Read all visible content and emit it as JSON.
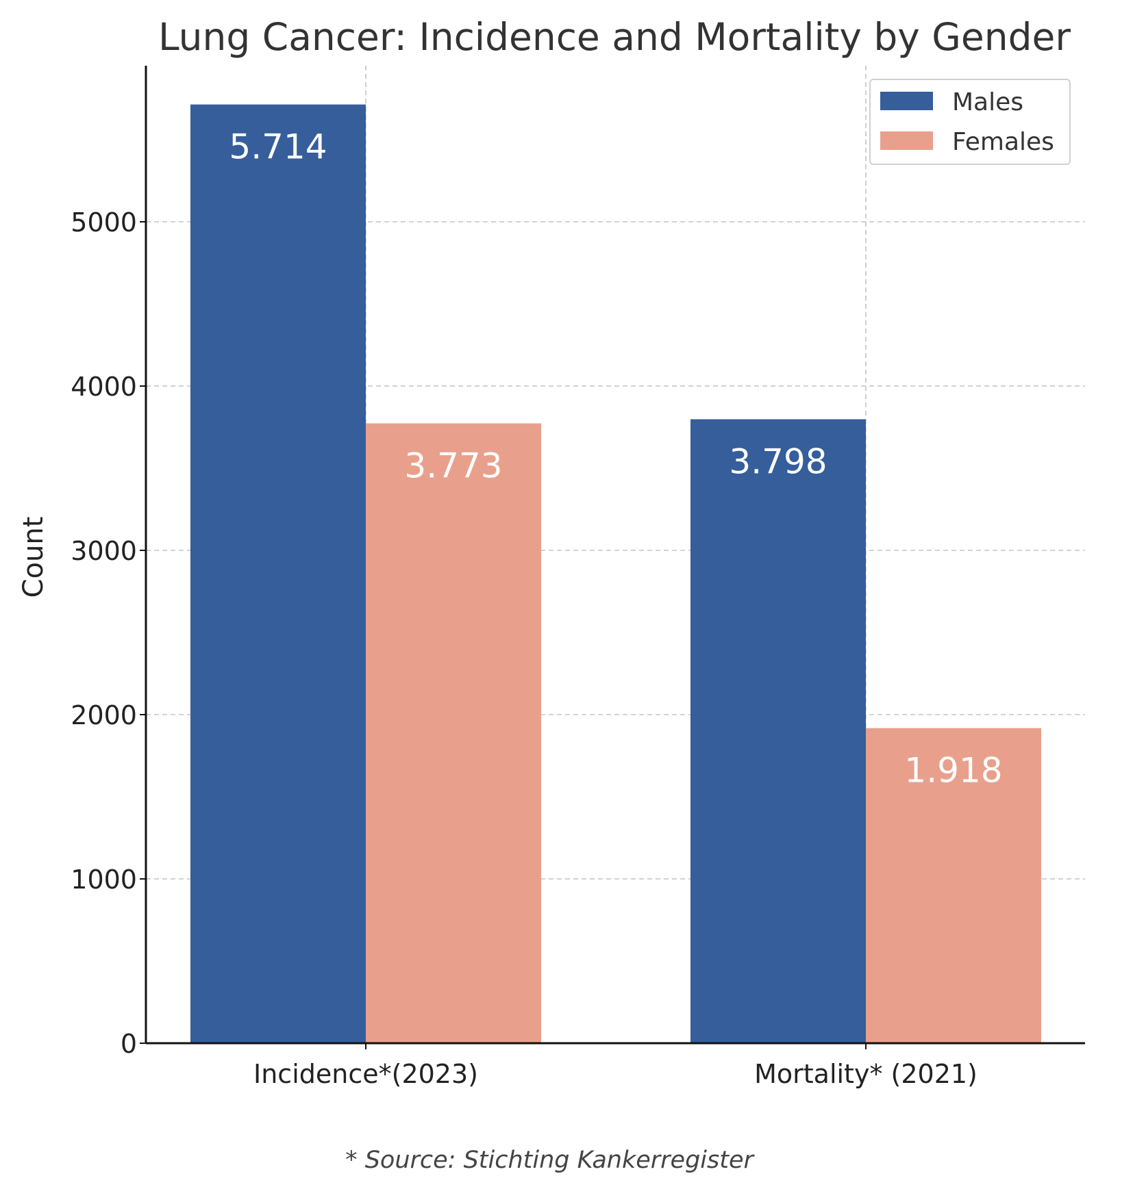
{
  "chart_data": {
    "type": "bar",
    "title": "Lung Cancer: Incidence and Mortality by Gender",
    "xlabel": "",
    "ylabel": "Count",
    "categories": [
      "Incidence*(2023)",
      "Mortality* (2021)"
    ],
    "series": [
      {
        "name": "Males",
        "values": [
          5714,
          3798
        ],
        "labels": [
          "5.714",
          "3.798"
        ],
        "color": "#355e9b"
      },
      {
        "name": "Females",
        "values": [
          3773,
          1918
        ],
        "labels": [
          "3.773",
          "1.918"
        ],
        "color": "#e8a08c"
      }
    ],
    "ylim": [
      0,
      5950
    ],
    "yticks": [
      0,
      1000,
      2000,
      3000,
      4000,
      5000
    ],
    "grid": true,
    "legend": "top-right",
    "footnote": "* Source: Stichting Kankerregister"
  }
}
